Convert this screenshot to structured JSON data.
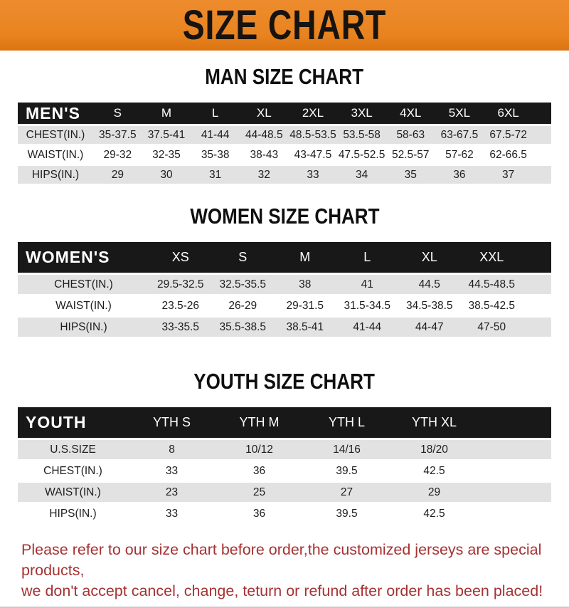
{
  "banner": {
    "title": "SIZE CHART"
  },
  "colors": {
    "accent": "#e8831f",
    "bar_black": "#181818",
    "row_gray": "#e2e2e2",
    "note_red": "#a63232"
  },
  "sections": [
    {
      "heading": "MAN SIZE CHART",
      "header_label": "MEN'S",
      "columns": [
        "S",
        "M",
        "L",
        "XL",
        "2XL",
        "3XL",
        "4XL",
        "5XL",
        "6XL"
      ],
      "rows": [
        {
          "label": "CHEST(IN.)",
          "values": [
            "35-37.5",
            "37.5-41",
            "41-44",
            "44-48.5",
            "48.5-53.5",
            "53.5-58",
            "58-63",
            "63-67.5",
            "67.5-72"
          ]
        },
        {
          "label": "WAIST(IN.)",
          "values": [
            "29-32",
            "32-35",
            "35-38",
            "38-43",
            "43-47.5",
            "47.5-52.5",
            "52.5-57",
            "57-62",
            "62-66.5"
          ]
        },
        {
          "label": "HIPS(IN.)",
          "values": [
            "29",
            "30",
            "31",
            "32",
            "33",
            "34",
            "35",
            "36",
            "37"
          ]
        }
      ]
    },
    {
      "heading": "WOMEN SIZE CHART",
      "header_label": "WOMEN'S",
      "columns": [
        "XS",
        "S",
        "M",
        "L",
        "XL",
        "XXL"
      ],
      "rows": [
        {
          "label": "CHEST(IN.)",
          "values": [
            "29.5-32.5",
            "32.5-35.5",
            "38",
            "41",
            "44.5",
            "44.5-48.5"
          ]
        },
        {
          "label": "WAIST(IN.)",
          "values": [
            "23.5-26",
            "26-29",
            "29-31.5",
            "31.5-34.5",
            "34.5-38.5",
            "38.5-42.5"
          ]
        },
        {
          "label": "HIPS(IN.)",
          "values": [
            "33-35.5",
            "35.5-38.5",
            "38.5-41",
            "41-44",
            "44-47",
            "47-50"
          ]
        }
      ]
    },
    {
      "heading": "YOUTH SIZE CHART",
      "header_label": "YOUTH",
      "columns": [
        "YTH S",
        "YTH M",
        "YTH L",
        "YTH XL"
      ],
      "rows": [
        {
          "label": "U.S.SIZE",
          "values": [
            "8",
            "10/12",
            "14/16",
            "18/20"
          ]
        },
        {
          "label": "CHEST(IN.)",
          "values": [
            "33",
            "36",
            "39.5",
            "42.5"
          ]
        },
        {
          "label": "WAIST(IN.)",
          "values": [
            "23",
            "25",
            "27",
            "29"
          ]
        },
        {
          "label": "HIPS(IN.)",
          "values": [
            "33",
            "36",
            "39.5",
            "42.5"
          ]
        }
      ]
    }
  ],
  "footer": {
    "line1": "Please refer to our size chart before order,the customized jerseys are special products,",
    "line2": "we don't accept cancel, change, teturn or refund after order has been placed!"
  }
}
